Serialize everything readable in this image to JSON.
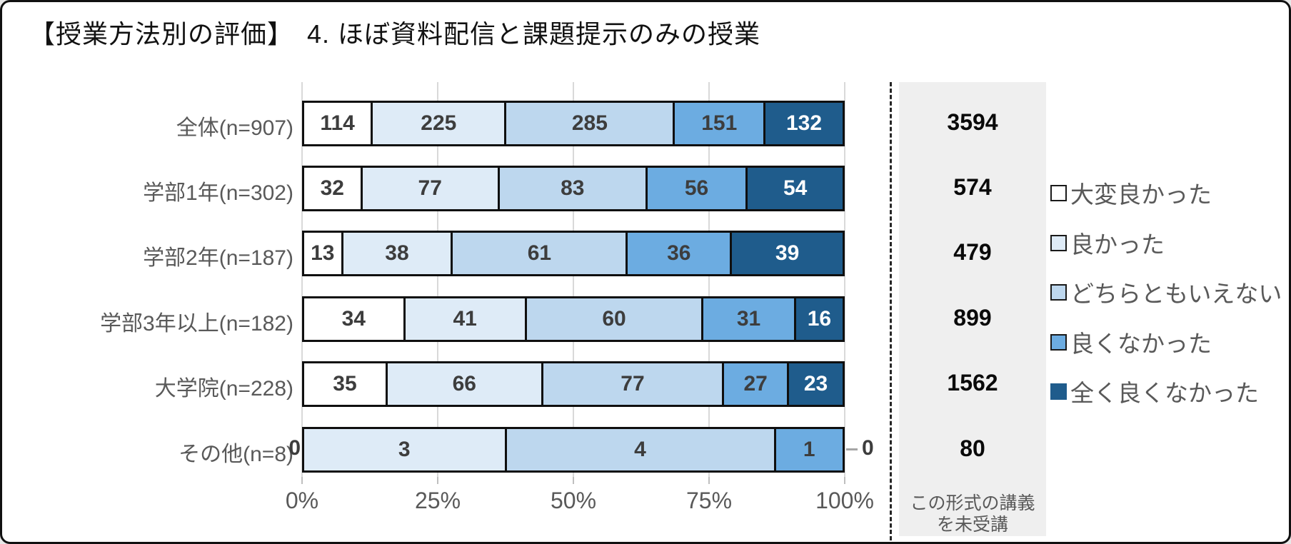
{
  "title": "【授業方法別の評価】　4. ほぼ資料配信と課題提示のみの授業",
  "chart_data": {
    "type": "bar",
    "subtype": "horizontal-100pct-stacked",
    "title": "【授業方法別の評価】　4. ほぼ資料配信と課題提示のみの授業",
    "categories": [
      "全体(n=907)",
      "学部1年(n=302)",
      "学部2年(n=187)",
      "学部3年以上(n=182)",
      "大学院(n=228)",
      "その他(n=8)"
    ],
    "series": [
      {
        "name": "大変良かった",
        "color": "#ffffff",
        "text_color": "#3d3d3d",
        "values": [
          114,
          32,
          13,
          34,
          35,
          0
        ]
      },
      {
        "name": "良かった",
        "color": "#deebf7",
        "text_color": "#3d3d3d",
        "values": [
          225,
          77,
          38,
          41,
          66,
          3
        ]
      },
      {
        "name": "どちらともいえない",
        "color": "#bdd7ee",
        "text_color": "#3d3d3d",
        "values": [
          285,
          83,
          61,
          60,
          77,
          4
        ]
      },
      {
        "name": "良くなかった",
        "color": "#6cace1",
        "text_color": "#3d3d3d",
        "values": [
          151,
          56,
          36,
          31,
          27,
          1
        ]
      },
      {
        "name": "全く良くなかった",
        "color": "#1f5c8c",
        "text_color": "#ffffff",
        "values": [
          132,
          54,
          39,
          16,
          23,
          0
        ]
      }
    ],
    "x_axis_ticks": [
      "0%",
      "25%",
      "50%",
      "75%",
      "100%"
    ],
    "x_axis_range": [
      0,
      100
    ],
    "grid": true,
    "legend_position": "right",
    "side_column": {
      "values": [
        "3594",
        "574",
        "479",
        "899",
        "1562",
        "80"
      ],
      "caption_lines": [
        "この形式の講義",
        "を未受講"
      ]
    }
  },
  "style_colors": {
    "bar_border": "#0f0f0f",
    "gridline": "#d9d9d9",
    "axis_text": "#595959",
    "side_panel_bg": "#efefef",
    "dashed_divider": "#262626"
  }
}
